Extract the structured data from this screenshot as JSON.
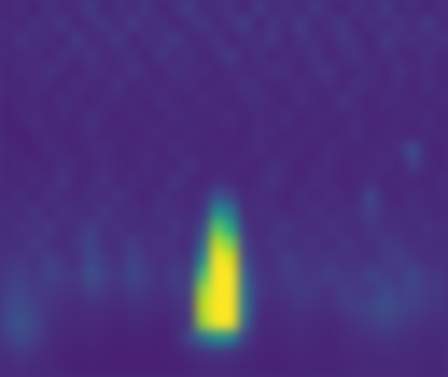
{
  "chart_data": {
    "type": "heatmap",
    "color": "viridis",
    "tick_labels": false,
    "zlim": [
      0,
      1
    ],
    "cells": [
      [
        0.1,
        0.14,
        0.09,
        0.16,
        0.11,
        0.13,
        0.18,
        0.1,
        0.15,
        0.12,
        0.17,
        0.1,
        0.14,
        0.19,
        0.11,
        0.13,
        0.16,
        0.1,
        0.18,
        0.12,
        0.15,
        0.11,
        0.17,
        0.13,
        0.1,
        0.16,
        0.12,
        0.18,
        0.11,
        0.14,
        0.1,
        0.13
      ],
      [
        0.13,
        0.1,
        0.15,
        0.12,
        0.17,
        0.1,
        0.14,
        0.16,
        0.11,
        0.18,
        0.12,
        0.15,
        0.1,
        0.13,
        0.17,
        0.11,
        0.14,
        0.19,
        0.1,
        0.16,
        0.12,
        0.18,
        0.11,
        0.14,
        0.17,
        0.1,
        0.15,
        0.12,
        0.16,
        0.11,
        0.18,
        0.12
      ],
      [
        0.11,
        0.16,
        0.12,
        0.14,
        0.1,
        0.18,
        0.11,
        0.13,
        0.17,
        0.1,
        0.15,
        0.13,
        0.18,
        0.11,
        0.12,
        0.16,
        0.1,
        0.14,
        0.13,
        0.17,
        0.1,
        0.15,
        0.13,
        0.11,
        0.16,
        0.14,
        0.1,
        0.17,
        0.13,
        0.15,
        0.12,
        0.16
      ],
      [
        0.12,
        0.11,
        0.14,
        0.1,
        0.15,
        0.12,
        0.16,
        0.11,
        0.13,
        0.14,
        0.1,
        0.17,
        0.12,
        0.15,
        0.1,
        0.13,
        0.18,
        0.11,
        0.15,
        0.1,
        0.14,
        0.12,
        0.16,
        0.1,
        0.13,
        0.15,
        0.11,
        0.14,
        0.12,
        0.1,
        0.15,
        0.11
      ],
      [
        0.1,
        0.13,
        0.11,
        0.15,
        0.12,
        0.1,
        0.14,
        0.13,
        0.11,
        0.16,
        0.12,
        0.1,
        0.15,
        0.12,
        0.14,
        0.1,
        0.13,
        0.12,
        0.11,
        0.15,
        0.13,
        0.1,
        0.14,
        0.16,
        0.11,
        0.12,
        0.14,
        0.1,
        0.15,
        0.12,
        0.13,
        0.1
      ],
      [
        0.11,
        0.1,
        0.13,
        0.12,
        0.1,
        0.14,
        0.11,
        0.12,
        0.15,
        0.1,
        0.13,
        0.11,
        0.12,
        0.14,
        0.1,
        0.12,
        0.11,
        0.15,
        0.13,
        0.1,
        0.12,
        0.14,
        0.11,
        0.13,
        0.1,
        0.15,
        0.12,
        0.11,
        0.13,
        0.1,
        0.14,
        0.12
      ],
      [
        0.1,
        0.12,
        0.11,
        0.1,
        0.14,
        0.11,
        0.1,
        0.13,
        0.11,
        0.12,
        0.1,
        0.14,
        0.11,
        0.1,
        0.13,
        0.11,
        0.1,
        0.12,
        0.14,
        0.11,
        0.1,
        0.13,
        0.12,
        0.1,
        0.16,
        0.11,
        0.1,
        0.13,
        0.12,
        0.11,
        0.1,
        0.12
      ],
      [
        0.09,
        0.11,
        0.13,
        0.1,
        0.12,
        0.1,
        0.15,
        0.11,
        0.1,
        0.12,
        0.11,
        0.1,
        0.13,
        0.12,
        0.1,
        0.11,
        0.13,
        0.1,
        0.12,
        0.11,
        0.14,
        0.1,
        0.11,
        0.12,
        0.1,
        0.13,
        0.11,
        0.1,
        0.12,
        0.11,
        0.13,
        0.1
      ],
      [
        0.1,
        0.09,
        0.11,
        0.12,
        0.1,
        0.11,
        0.13,
        0.1,
        0.12,
        0.1,
        0.11,
        0.13,
        0.1,
        0.11,
        0.12,
        0.1,
        0.11,
        0.1,
        0.13,
        0.12,
        0.1,
        0.11,
        0.12,
        0.1,
        0.11,
        0.14,
        0.1,
        0.12,
        0.11,
        0.1,
        0.12,
        0.11
      ],
      [
        0.11,
        0.1,
        0.09,
        0.13,
        0.11,
        0.1,
        0.12,
        0.14,
        0.1,
        0.11,
        0.12,
        0.1,
        0.14,
        0.11,
        0.1,
        0.12,
        0.1,
        0.11,
        0.13,
        0.1,
        0.12,
        0.11,
        0.1,
        0.13,
        0.11,
        0.1,
        0.12,
        0.11,
        0.13,
        0.24,
        0.11,
        0.1
      ],
      [
        0.1,
        0.12,
        0.11,
        0.1,
        0.14,
        0.12,
        0.1,
        0.13,
        0.11,
        0.1,
        0.13,
        0.12,
        0.1,
        0.15,
        0.11,
        0.1,
        0.12,
        0.11,
        0.1,
        0.14,
        0.12,
        0.1,
        0.11,
        0.13,
        0.1,
        0.12,
        0.11,
        0.14,
        0.1,
        0.18,
        0.12,
        0.1
      ],
      [
        0.12,
        0.1,
        0.13,
        0.11,
        0.16,
        0.1,
        0.12,
        0.15,
        0.1,
        0.13,
        0.11,
        0.1,
        0.16,
        0.12,
        0.1,
        0.13,
        0.11,
        0.1,
        0.12,
        0.15,
        0.11,
        0.1,
        0.14,
        0.12,
        0.1,
        0.11,
        0.13,
        0.1,
        0.12,
        0.11,
        0.1,
        0.13
      ],
      [
        0.11,
        0.14,
        0.1,
        0.15,
        0.12,
        0.11,
        0.14,
        0.12,
        0.16,
        0.11,
        0.1,
        0.14,
        0.12,
        0.11,
        0.13,
        0.25,
        0.2,
        0.11,
        0.13,
        0.12,
        0.1,
        0.14,
        0.11,
        0.13,
        0.12,
        0.11,
        0.22,
        0.12,
        0.1,
        0.13,
        0.11,
        0.12
      ],
      [
        0.13,
        0.12,
        0.16,
        0.11,
        0.15,
        0.13,
        0.12,
        0.17,
        0.12,
        0.14,
        0.11,
        0.15,
        0.13,
        0.12,
        0.14,
        0.5,
        0.4,
        0.12,
        0.14,
        0.13,
        0.11,
        0.12,
        0.15,
        0.12,
        0.13,
        0.14,
        0.18,
        0.13,
        0.12,
        0.14,
        0.12,
        0.11
      ],
      [
        0.12,
        0.15,
        0.13,
        0.17,
        0.12,
        0.14,
        0.18,
        0.13,
        0.15,
        0.12,
        0.14,
        0.12,
        0.16,
        0.13,
        0.2,
        0.75,
        0.6,
        0.15,
        0.12,
        0.14,
        0.16,
        0.13,
        0.12,
        0.15,
        0.14,
        0.12,
        0.16,
        0.14,
        0.13,
        0.12,
        0.15,
        0.13
      ],
      [
        0.14,
        0.13,
        0.17,
        0.14,
        0.12,
        0.16,
        0.2,
        0.14,
        0.13,
        0.18,
        0.13,
        0.15,
        0.14,
        0.12,
        0.3,
        0.9,
        0.8,
        0.18,
        0.13,
        0.16,
        0.13,
        0.14,
        0.15,
        0.12,
        0.16,
        0.14,
        0.13,
        0.17,
        0.15,
        0.13,
        0.14,
        0.12
      ],
      [
        0.15,
        0.16,
        0.14,
        0.18,
        0.15,
        0.13,
        0.22,
        0.16,
        0.14,
        0.2,
        0.15,
        0.13,
        0.16,
        0.14,
        0.45,
        1.0,
        0.95,
        0.22,
        0.14,
        0.13,
        0.18,
        0.15,
        0.14,
        0.16,
        0.13,
        0.15,
        0.14,
        0.16,
        0.18,
        0.15,
        0.13,
        0.14
      ],
      [
        0.17,
        0.18,
        0.15,
        0.2,
        0.17,
        0.16,
        0.25,
        0.18,
        0.15,
        0.22,
        0.17,
        0.14,
        0.18,
        0.16,
        0.7,
        1.0,
        1.0,
        0.3,
        0.15,
        0.14,
        0.17,
        0.16,
        0.15,
        0.18,
        0.16,
        0.15,
        0.2,
        0.17,
        0.16,
        0.22,
        0.16,
        0.15
      ],
      [
        0.18,
        0.2,
        0.17,
        0.16,
        0.15,
        0.14,
        0.18,
        0.16,
        0.14,
        0.17,
        0.15,
        0.13,
        0.16,
        0.18,
        0.85,
        1.0,
        1.0,
        0.35,
        0.16,
        0.14,
        0.15,
        0.17,
        0.16,
        0.14,
        0.18,
        0.17,
        0.16,
        0.22,
        0.18,
        0.2,
        0.17,
        0.16
      ],
      [
        0.2,
        0.22,
        0.18,
        0.15,
        0.13,
        0.12,
        0.14,
        0.13,
        0.12,
        0.14,
        0.13,
        0.12,
        0.14,
        0.16,
        0.9,
        1.0,
        1.0,
        0.38,
        0.14,
        0.12,
        0.13,
        0.15,
        0.14,
        0.13,
        0.16,
        0.18,
        0.2,
        0.24,
        0.2,
        0.18,
        0.16,
        0.15
      ],
      [
        0.22,
        0.25,
        0.2,
        0.14,
        0.12,
        0.11,
        0.12,
        0.11,
        0.1,
        0.12,
        0.11,
        0.1,
        0.12,
        0.15,
        0.85,
        1.0,
        1.0,
        0.32,
        0.12,
        0.11,
        0.12,
        0.13,
        0.12,
        0.11,
        0.13,
        0.15,
        0.17,
        0.2,
        0.17,
        0.15,
        0.14,
        0.13
      ],
      [
        0.18,
        0.22,
        0.18,
        0.13,
        0.11,
        0.1,
        0.11,
        0.1,
        0.09,
        0.1,
        0.1,
        0.09,
        0.11,
        0.2,
        0.35,
        0.5,
        0.45,
        0.18,
        0.11,
        0.1,
        0.11,
        0.12,
        0.11,
        0.1,
        0.12,
        0.13,
        0.14,
        0.15,
        0.14,
        0.13,
        0.12,
        0.12
      ],
      [
        0.14,
        0.16,
        0.14,
        0.12,
        0.1,
        0.09,
        0.1,
        0.09,
        0.09,
        0.09,
        0.09,
        0.09,
        0.1,
        0.12,
        0.14,
        0.15,
        0.14,
        0.12,
        0.1,
        0.1,
        0.1,
        0.11,
        0.1,
        0.1,
        0.11,
        0.12,
        0.12,
        0.13,
        0.12,
        0.12,
        0.11,
        0.11
      ],
      [
        0.12,
        0.13,
        0.12,
        0.11,
        0.1,
        0.09,
        0.09,
        0.09,
        0.09,
        0.09,
        0.09,
        0.09,
        0.09,
        0.1,
        0.11,
        0.11,
        0.11,
        0.1,
        0.1,
        0.09,
        0.1,
        0.1,
        0.1,
        0.1,
        0.1,
        0.11,
        0.11,
        0.11,
        0.11,
        0.11,
        0.1,
        0.1
      ]
    ]
  }
}
